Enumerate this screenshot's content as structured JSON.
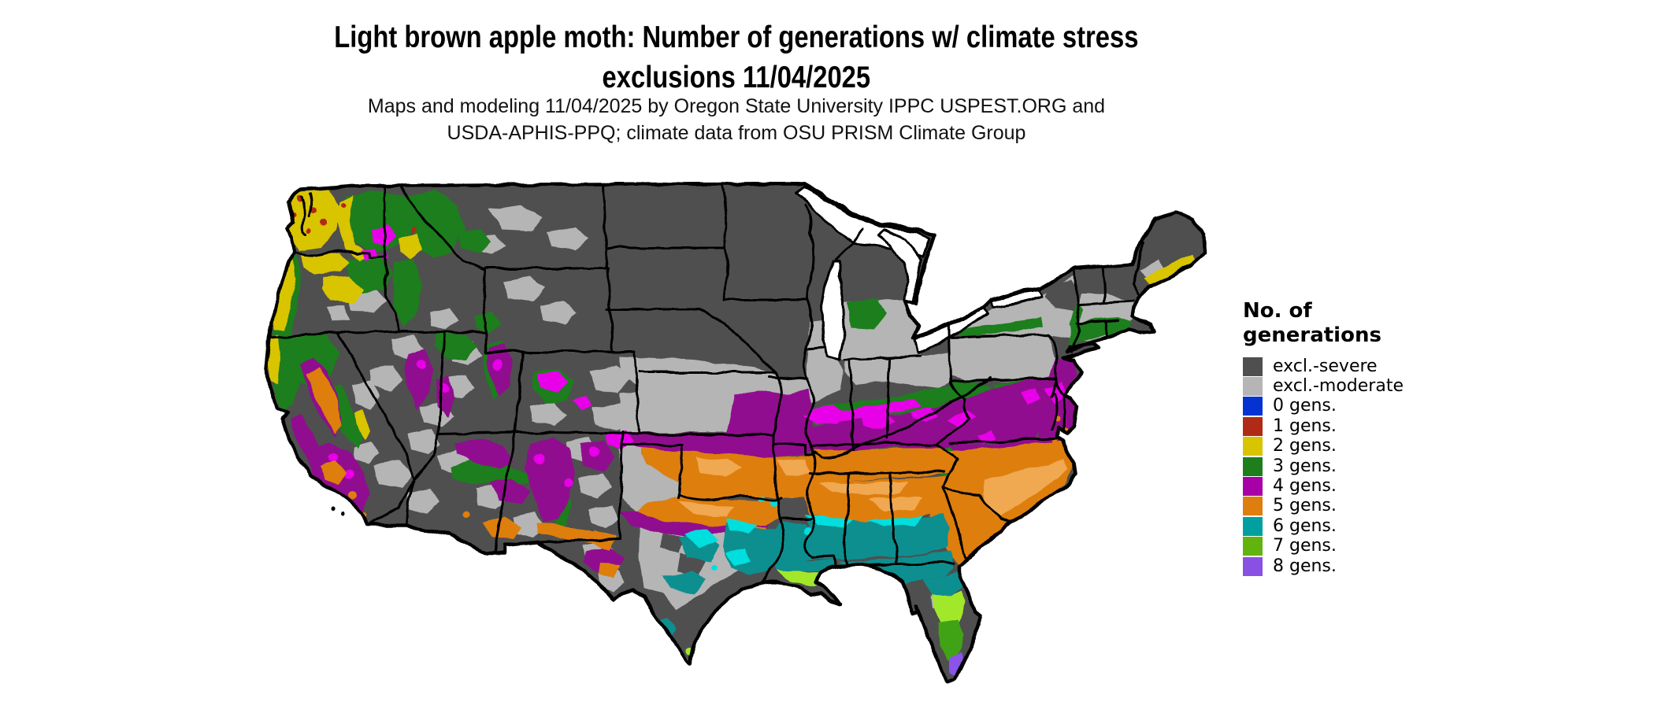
{
  "header": {
    "title": "Light brown apple moth: Number of generations w/ climate stress\nexclusions 11/04/2025",
    "subtitle": "Maps and modeling 11/04/2025 by Oregon State University IPPC USPEST.ORG and\nUSDA-APHIS-PPQ; climate data from OSU PRISM Climate Group"
  },
  "legend": {
    "title": "No. of\ngenerations",
    "items": [
      {
        "label": "excl.-severe",
        "color": "#4f4f4f"
      },
      {
        "label": "excl.-moderate",
        "color": "#b5b5b5"
      },
      {
        "label": "0 gens.",
        "color": "#0433d2"
      },
      {
        "label": "1 gens.",
        "color": "#b02a15"
      },
      {
        "label": "2 gens.",
        "color": "#d9c400"
      },
      {
        "label": "3 gens.",
        "color": "#1e7e1c"
      },
      {
        "label": "4 gens.",
        "color": "#a800a8"
      },
      {
        "label": "5 gens.",
        "color": "#de7e0e"
      },
      {
        "label": "6 gens.",
        "color": "#00a0a0"
      },
      {
        "label": "7 gens.",
        "color": "#63b30f"
      },
      {
        "label": "8 gens.",
        "color": "#8a4fe3"
      }
    ]
  },
  "map": {
    "region_shown": "Contiguous United States",
    "colors": {
      "severe": "#4f4f4f",
      "moderate": "#b5b5b5",
      "water": "#ffffff",
      "border": "#000000",
      "g1red": "#b02a15",
      "g2yellow": "#d9c400",
      "g3green": "#1e7e1c",
      "g5orange": "#de7e0e",
      "purple_deep": "#91098f",
      "magenta_bright": "#e800e8",
      "orange_light": "#f0a851",
      "teal_deep": "#0b8f8f",
      "cyan_bright": "#06dede",
      "lime": "#a2e82c",
      "green_fl": "#3fa312",
      "violet_light": "#8b52e8"
    }
  }
}
